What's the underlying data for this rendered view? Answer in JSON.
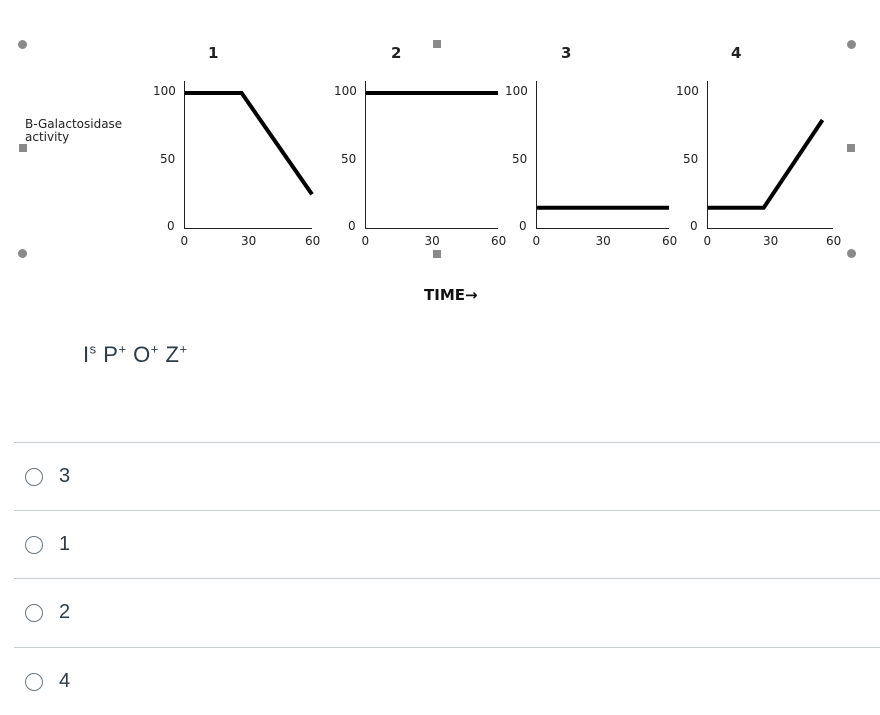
{
  "figure": {
    "ylabel_line1": "B-Galactosidase",
    "ylabel_line2": "activity",
    "xlabel": "TIME→",
    "panels": [
      {
        "number": "1",
        "y_ticks": [
          "100",
          "50",
          "0"
        ],
        "x_ticks": [
          "0",
          "30",
          "60"
        ]
      },
      {
        "number": "2",
        "y_ticks": [
          "100",
          "50",
          "0"
        ],
        "x_ticks": [
          "0",
          "30",
          "60"
        ]
      },
      {
        "number": "3",
        "y_ticks": [
          "100",
          "50",
          "0"
        ],
        "x_ticks": [
          "0",
          "30",
          "60"
        ]
      },
      {
        "number": "4",
        "y_ticks": [
          "100",
          "50",
          "0"
        ],
        "x_ticks": [
          "0",
          "30",
          "60"
        ]
      }
    ]
  },
  "chart_data": [
    {
      "type": "line",
      "title": "1",
      "ylabel": "B-Galactosidase activity",
      "xlabel": "TIME→",
      "xlim": [
        0,
        60
      ],
      "ylim": [
        0,
        100
      ],
      "series": [
        {
          "x": [
            0,
            27,
            60
          ],
          "y": [
            100,
            100,
            25
          ]
        }
      ]
    },
    {
      "type": "line",
      "title": "2",
      "ylabel": "B-Galactosidase activity",
      "xlabel": "TIME→",
      "xlim": [
        0,
        60
      ],
      "ylim": [
        0,
        100
      ],
      "series": [
        {
          "x": [
            0,
            60
          ],
          "y": [
            100,
            100
          ]
        }
      ]
    },
    {
      "type": "line",
      "title": "3",
      "ylabel": "B-Galactosidase activity",
      "xlabel": "TIME→",
      "xlim": [
        0,
        60
      ],
      "ylim": [
        0,
        100
      ],
      "series": [
        {
          "x": [
            0,
            60
          ],
          "y": [
            15,
            15
          ]
        }
      ]
    },
    {
      "type": "line",
      "title": "4",
      "ylabel": "B-Galactosidase activity",
      "xlabel": "TIME→",
      "xlim": [
        0,
        60
      ],
      "ylim": [
        0,
        100
      ],
      "series": [
        {
          "x": [
            0,
            27,
            55
          ],
          "y": [
            15,
            15,
            80
          ]
        }
      ]
    }
  ],
  "question": {
    "genotype_parts": [
      {
        "base": "I",
        "sup": "s"
      },
      {
        "base": "P",
        "sup": "+"
      },
      {
        "base": "O",
        "sup": "+"
      },
      {
        "base": "Z",
        "sup": "+"
      }
    ]
  },
  "answers": [
    {
      "label": "3"
    },
    {
      "label": "1"
    },
    {
      "label": "2"
    },
    {
      "label": "4"
    }
  ]
}
